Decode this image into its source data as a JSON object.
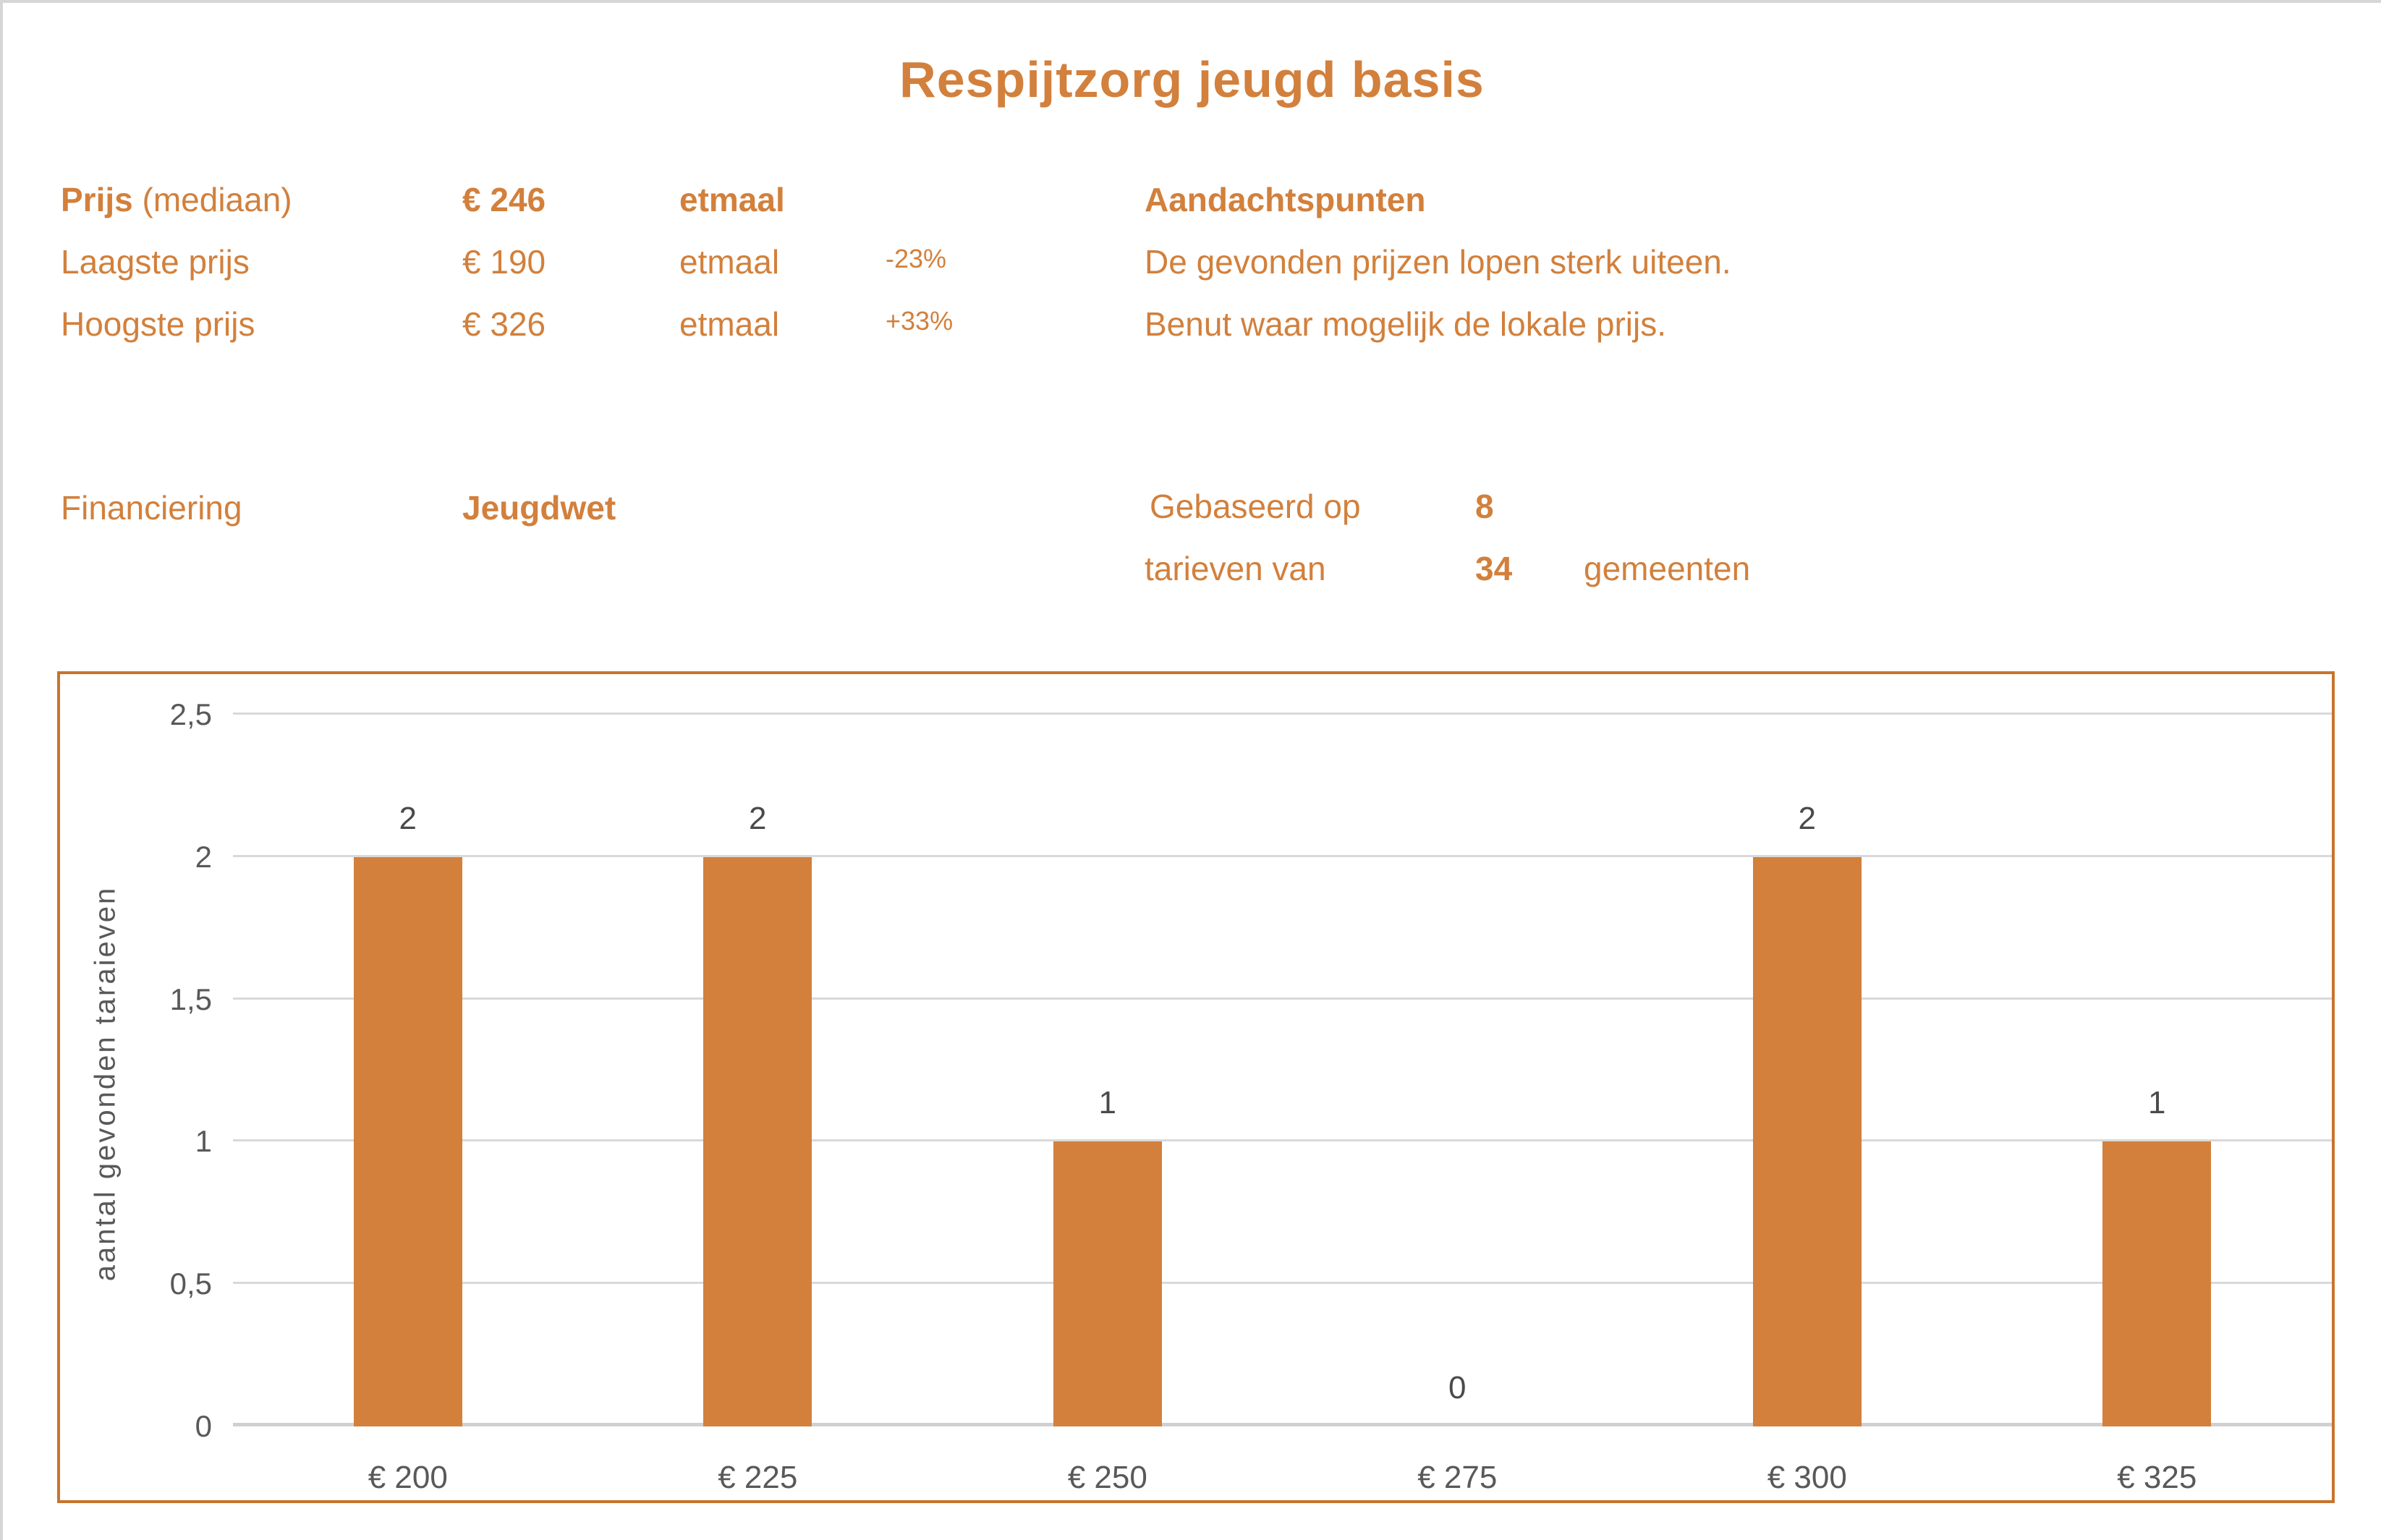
{
  "header": {
    "title": "Respijtzorg jeugd basis"
  },
  "colors": {
    "accent": "#D2803C",
    "accent_dark": "#C8742C",
    "bar": "#D2803C",
    "gray_text": "#595959",
    "label_dark": "#4A4A4A",
    "gridline": "#D9D9D9",
    "page_border": "#D6D6D6"
  },
  "stats": {
    "rows": [
      {
        "label_strong": "Prijs",
        "label_normal": " (mediaan)",
        "value": "€ 246",
        "unit": "etmaal",
        "pct": ""
      },
      {
        "label_strong": "",
        "label_normal": "Laagste prijs",
        "value": "€ 190",
        "unit": "etmaal",
        "pct": "-23%"
      },
      {
        "label_strong": "",
        "label_normal": "Hoogste prijs",
        "value": "€ 326",
        "unit": "etmaal",
        "pct": "+33%"
      }
    ]
  },
  "notes": {
    "heading": "Aandachtspunten",
    "line1": "De gevonden prijzen lopen sterk uiteen.",
    "line2": "Benut waar mogelijk de lokale prijs."
  },
  "financiering": {
    "label": "Financiering",
    "value": "Jeugdwet"
  },
  "basis": {
    "line1_prefix": "Gebaseerd op",
    "line1_number": "8",
    "line2_prefix": "tarieven van",
    "line2_number": "34",
    "line2_suffix": "gemeenten"
  },
  "chart_data": {
    "type": "bar",
    "title": "",
    "categories": [
      "€ 200",
      "€ 225",
      "€ 250",
      "€ 275",
      "€ 300",
      "€ 325"
    ],
    "values": [
      2,
      2,
      1,
      0,
      2,
      1
    ],
    "bar_labels": [
      "2",
      "2",
      "1",
      "0",
      "2",
      "1"
    ],
    "xlabel": "",
    "ylabel": "aantal gevonden taraieven",
    "ylim": [
      0,
      2.5
    ],
    "yticks": [
      {
        "value": 0,
        "label": "0"
      },
      {
        "value": 0.5,
        "label": "0,5"
      },
      {
        "value": 1,
        "label": "1"
      },
      {
        "value": 1.5,
        "label": "1,5"
      },
      {
        "value": 2,
        "label": "2"
      },
      {
        "value": 2.5,
        "label": "2,5"
      }
    ],
    "grid": true,
    "legend": "none"
  }
}
